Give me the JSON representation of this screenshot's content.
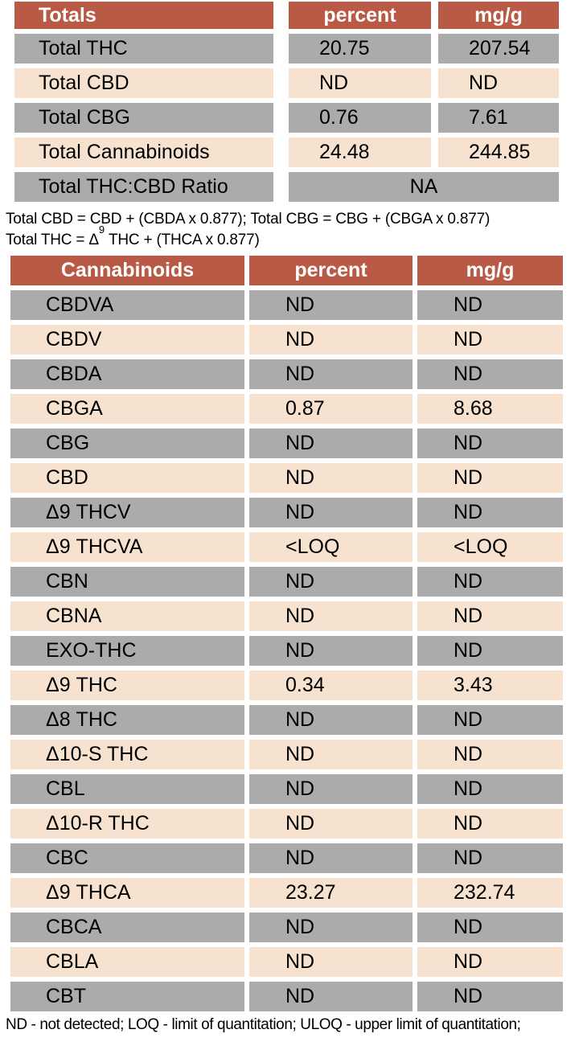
{
  "colors": {
    "header_bg": "#b85a45",
    "row_gray": "#ababab",
    "row_peach": "#f7e2cf",
    "header_text": "#ffffff",
    "body_text": "#000000"
  },
  "totals_table": {
    "title": "Totals",
    "col_percent": "percent",
    "col_mgg": "mg/g",
    "rows": [
      {
        "label": "Total THC",
        "percent": "20.75",
        "mgg": "207.54"
      },
      {
        "label": "Total CBD",
        "percent": "ND",
        "mgg": "ND"
      },
      {
        "label": "Total CBG",
        "percent": "0.76",
        "mgg": "7.61"
      },
      {
        "label": "Total Cannabinoids",
        "percent": "24.48",
        "mgg": "244.85"
      }
    ],
    "ratio_row": {
      "label": "Total THC:CBD Ratio",
      "value": "NA"
    }
  },
  "footnotes": {
    "line1": "Total CBD = CBD + (CBDA x 0.877); Total CBG = CBG + (CBGA x 0.877)",
    "line2_prefix": "Total THC = Δ",
    "line2_sup": "9",
    "line2_suffix": " THC + (THCA x 0.877)",
    "bottom": "ND - not detected; LOQ - limit of quantitation; ULOQ - upper limit of quantitation;"
  },
  "cannabinoids_table": {
    "title": "Cannabinoids",
    "col_percent": "percent",
    "col_mgg": "mg/g",
    "rows": [
      {
        "name": "CBDVA",
        "percent": "ND",
        "mgg": "ND"
      },
      {
        "name": "CBDV",
        "percent": "ND",
        "mgg": "ND"
      },
      {
        "name": "CBDA",
        "percent": "ND",
        "mgg": "ND"
      },
      {
        "name": "CBGA",
        "percent": "0.87",
        "mgg": "8.68"
      },
      {
        "name": "CBG",
        "percent": "ND",
        "mgg": "ND"
      },
      {
        "name": "CBD",
        "percent": "ND",
        "mgg": "ND"
      },
      {
        "name": "Δ9 THCV",
        "percent": "ND",
        "mgg": "ND"
      },
      {
        "name": "Δ9 THCVA",
        "percent": "<LOQ",
        "mgg": "<LOQ"
      },
      {
        "name": "CBN",
        "percent": "ND",
        "mgg": "ND"
      },
      {
        "name": "CBNA",
        "percent": "ND",
        "mgg": "ND"
      },
      {
        "name": "EXO-THC",
        "percent": "ND",
        "mgg": "ND"
      },
      {
        "name": "Δ9 THC",
        "percent": "0.34",
        "mgg": "3.43"
      },
      {
        "name": "Δ8 THC",
        "percent": "ND",
        "mgg": "ND"
      },
      {
        "name": "Δ10-S THC",
        "percent": "ND",
        "mgg": "ND"
      },
      {
        "name": "CBL",
        "percent": "ND",
        "mgg": "ND"
      },
      {
        "name": "Δ10-R THC",
        "percent": "ND",
        "mgg": "ND"
      },
      {
        "name": "CBC",
        "percent": "ND",
        "mgg": "ND"
      },
      {
        "name": "Δ9 THCA",
        "percent": "23.27",
        "mgg": "232.74"
      },
      {
        "name": "CBCA",
        "percent": "ND",
        "mgg": "ND"
      },
      {
        "name": "CBLA",
        "percent": "ND",
        "mgg": "ND"
      },
      {
        "name": "CBT",
        "percent": "ND",
        "mgg": "ND"
      }
    ]
  }
}
